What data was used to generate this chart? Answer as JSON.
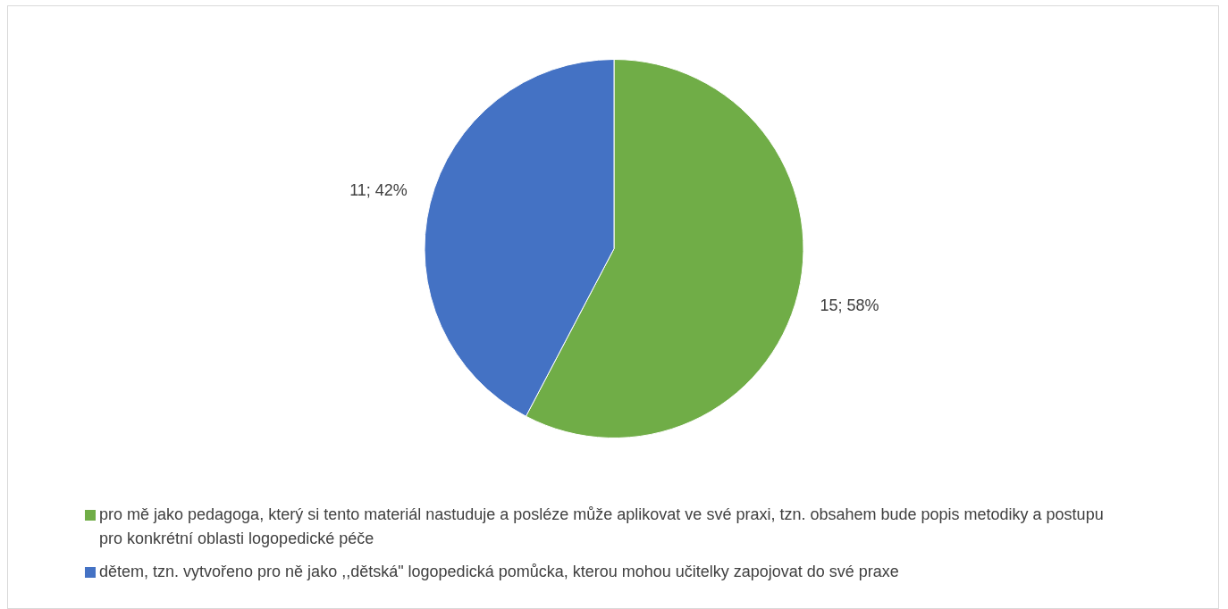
{
  "chart_data": {
    "type": "pie",
    "categories": [
      "pro mě jako pedagoga, který si tento materiál nastuduje a posléze může aplikovat ve své praxi, tzn. obsahem bude popis metodiky a postupu pro konkrétní oblasti logopedické péče",
      "dětem, tzn. vytvořeno pro ně jako ,,dětská\" logopedická pomůcka, kterou mohou učitelky zapojovat do své praxe"
    ],
    "values": [
      15,
      11
    ],
    "value_labels": [
      "15; 58%",
      "11; 42%"
    ],
    "colors": [
      "#70ad47",
      "#4472c4"
    ],
    "legend": "bottom"
  }
}
